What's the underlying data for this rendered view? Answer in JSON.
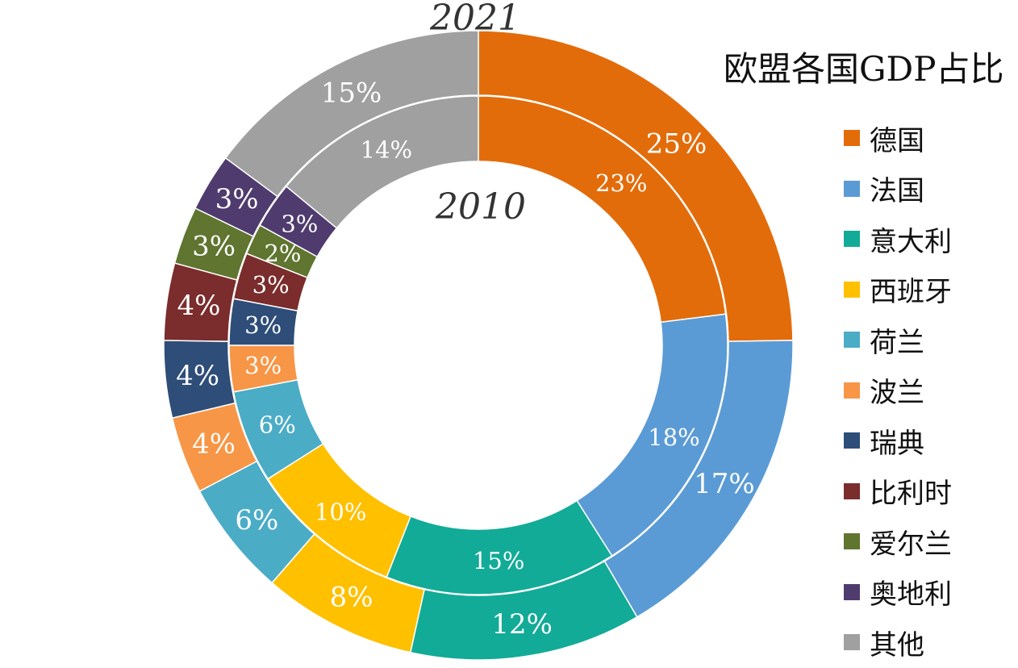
{
  "chart_data": {
    "type": "pie",
    "subtype": "double-donut",
    "title": "欧盟各国GDP占比",
    "categories": [
      "德国",
      "法国",
      "意大利",
      "西班牙",
      "荷兰",
      "波兰",
      "瑞典",
      "比利时",
      "爱尔兰",
      "奥地利",
      "其他"
    ],
    "colors": [
      "#E36C0A",
      "#5B9BD5",
      "#12AB97",
      "#FFC000",
      "#4BACC6",
      "#F79646",
      "#2E4D78",
      "#7B2C2C",
      "#5F7530",
      "#4F3B6E",
      "#A0A0A0"
    ],
    "series": [
      {
        "name": "2021",
        "ring": "outer",
        "values": [
          25,
          17,
          12,
          8,
          6,
          4,
          4,
          4,
          3,
          3,
          15
        ],
        "labels": [
          "25%",
          "17%",
          "12%",
          "8%",
          "6%",
          "4%",
          "4%",
          "4%",
          "3%",
          "3%",
          "15%"
        ]
      },
      {
        "name": "2010",
        "ring": "inner",
        "values": [
          23,
          18,
          15,
          10,
          6,
          3,
          3,
          3,
          2,
          3,
          14
        ],
        "labels": [
          "23%",
          "18%",
          "15%",
          "10%",
          "6%",
          "3%",
          "3%",
          "3%",
          "2%",
          "3%",
          "14%"
        ]
      }
    ],
    "legend": "right"
  }
}
